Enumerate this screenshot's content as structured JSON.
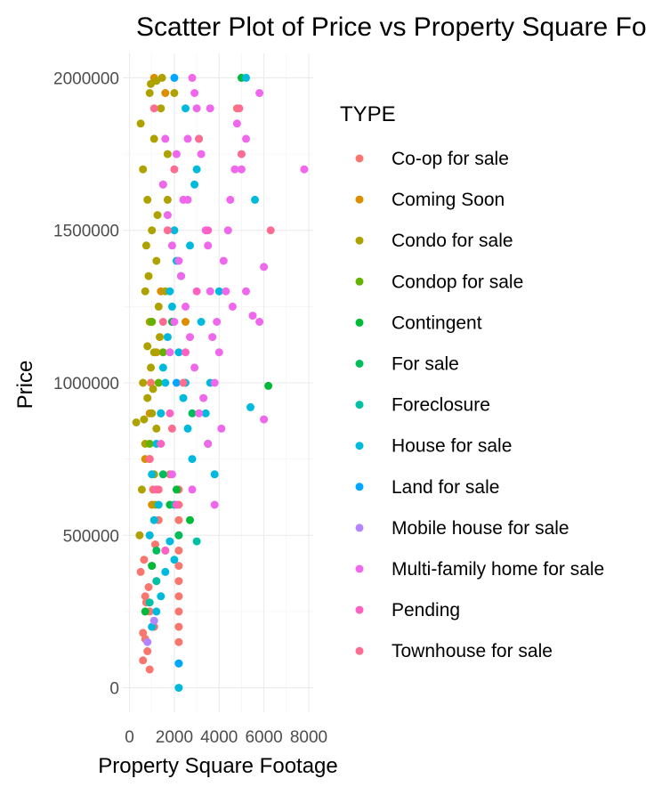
{
  "chart_data": {
    "type": "scatter",
    "title": "Scatter Plot of Price vs Property Square Footage",
    "xlabel": "Property Square Footage",
    "ylabel": "Price",
    "x_ticks": [
      0,
      2000,
      4000,
      6000,
      8000
    ],
    "y_ticks": [
      0,
      500000,
      1000000,
      1500000,
      2000000
    ],
    "xlim": [
      -300,
      8200
    ],
    "ylim": [
      -80000,
      2080000
    ],
    "grid": true,
    "legend_title": "TYPE",
    "legend_position": "right",
    "series": [
      {
        "name": "Co-op for sale",
        "color": "#F8766D",
        "points": [
          [
            700,
            300000
          ],
          [
            900,
            250000
          ],
          [
            1000,
            400000
          ],
          [
            600,
            180000
          ],
          [
            800,
            120000
          ],
          [
            1200,
            350000
          ],
          [
            900,
            500000
          ],
          [
            750,
            280000
          ],
          [
            1100,
            200000
          ],
          [
            2200,
            150000
          ],
          [
            2200,
            250000
          ],
          [
            2200,
            350000
          ],
          [
            2200,
            450000
          ],
          [
            2200,
            550000
          ],
          [
            2200,
            650000
          ],
          [
            2200,
            200000
          ],
          [
            2200,
            300000
          ],
          [
            2200,
            400000
          ],
          [
            2200,
            500000
          ],
          [
            2200,
            600000
          ],
          [
            1300,
            550000
          ],
          [
            500,
            380000
          ],
          [
            1800,
            700000
          ],
          [
            4800,
            1900000
          ],
          [
            950,
            1000000
          ],
          [
            1050,
            650000
          ],
          [
            650,
            420000
          ],
          [
            850,
            330000
          ],
          [
            1150,
            470000
          ],
          [
            700,
            160000
          ],
          [
            600,
            90000
          ],
          [
            900,
            60000
          ]
        ]
      },
      {
        "name": "Coming Soon",
        "color": "#DB8E00",
        "points": [
          [
            1200,
            1100000
          ],
          [
            900,
            900000
          ],
          [
            1400,
            1300000
          ],
          [
            700,
            750000
          ],
          [
            1600,
            1950000
          ],
          [
            1100,
            2000000
          ],
          [
            2500,
            1200000
          ],
          [
            1000,
            600000
          ]
        ]
      },
      {
        "name": "Condo for sale",
        "color": "#AEA200",
        "points": [
          [
            900,
            1950000
          ],
          [
            1100,
            1800000
          ],
          [
            800,
            1600000
          ],
          [
            1000,
            1500000
          ],
          [
            1200,
            1400000
          ],
          [
            700,
            1300000
          ],
          [
            900,
            1200000
          ],
          [
            1100,
            1100000
          ],
          [
            600,
            1000000
          ],
          [
            800,
            950000
          ],
          [
            1000,
            900000
          ],
          [
            1200,
            850000
          ],
          [
            700,
            800000
          ],
          [
            900,
            750000
          ],
          [
            1100,
            700000
          ],
          [
            1300,
            1250000
          ],
          [
            1500,
            1650000
          ],
          [
            1700,
            1750000
          ],
          [
            1400,
            1900000
          ],
          [
            500,
            1850000
          ],
          [
            600,
            1700000
          ],
          [
            750,
            1450000
          ],
          [
            850,
            1350000
          ],
          [
            950,
            1050000
          ],
          [
            1050,
            980000
          ],
          [
            1250,
            1550000
          ],
          [
            1350,
            1150000
          ],
          [
            650,
            880000
          ],
          [
            550,
            650000
          ],
          [
            1150,
            600000
          ],
          [
            450,
            500000
          ],
          [
            1450,
            2000000
          ],
          [
            2000,
            1950000
          ],
          [
            950,
            1980000
          ],
          [
            1200,
            1990000
          ],
          [
            1600,
            1300000
          ],
          [
            800,
            1120000
          ],
          [
            1000,
            1200000
          ],
          [
            300,
            870000
          ],
          [
            1700,
            1600000
          ]
        ]
      },
      {
        "name": "Condop for sale",
        "color": "#64B200",
        "points": [
          [
            1000,
            1200000
          ],
          [
            1300,
            1000000
          ],
          [
            900,
            800000
          ],
          [
            1500,
            1100000
          ]
        ]
      },
      {
        "name": "Contingent",
        "color": "#00BA38",
        "points": [
          [
            6200,
            990000
          ],
          [
            5000,
            2000000
          ],
          [
            3500,
            800000
          ],
          [
            1800,
            600000
          ],
          [
            1400,
            900000
          ],
          [
            2100,
            650000
          ],
          [
            1000,
            400000
          ],
          [
            1900,
            1200000
          ],
          [
            700,
            250000
          ],
          [
            2700,
            550000
          ]
        ]
      },
      {
        "name": "For sale",
        "color": "#00BD5C",
        "points": [
          [
            1500,
            700000
          ],
          [
            2200,
            500000
          ],
          [
            1200,
            450000
          ],
          [
            2800,
            900000
          ]
        ]
      },
      {
        "name": "Foreclosure",
        "color": "#00C1A3",
        "points": [
          [
            1200,
            350000
          ],
          [
            1600,
            450000
          ],
          [
            3000,
            480000
          ],
          [
            900,
            280000
          ],
          [
            2000,
            600000
          ]
        ]
      },
      {
        "name": "House for sale",
        "color": "#00BADE",
        "points": [
          [
            2500,
            1900000
          ],
          [
            3000,
            1700000
          ],
          [
            2000,
            1500000
          ],
          [
            1800,
            1300000
          ],
          [
            2200,
            1100000
          ],
          [
            1600,
            1000000
          ],
          [
            2400,
            950000
          ],
          [
            1400,
            900000
          ],
          [
            2600,
            850000
          ],
          [
            1200,
            800000
          ],
          [
            2800,
            750000
          ],
          [
            1000,
            700000
          ],
          [
            3200,
            1200000
          ],
          [
            3600,
            1000000
          ],
          [
            3800,
            700000
          ],
          [
            5400,
            920000
          ],
          [
            5600,
            1600000
          ],
          [
            5200,
            2000000
          ],
          [
            2100,
            1400000
          ],
          [
            1900,
            1250000
          ],
          [
            1700,
            1150000
          ],
          [
            1500,
            1050000
          ],
          [
            2300,
            1350000
          ],
          [
            2700,
            1450000
          ],
          [
            2900,
            1650000
          ],
          [
            3100,
            1800000
          ],
          [
            1300,
            600000
          ],
          [
            1100,
            550000
          ],
          [
            900,
            500000
          ],
          [
            1800,
            480000
          ],
          [
            2000,
            420000
          ],
          [
            1600,
            380000
          ],
          [
            1400,
            300000
          ],
          [
            1200,
            250000
          ],
          [
            1000,
            200000
          ],
          [
            2200,
            80000
          ],
          [
            2200,
            0
          ],
          [
            3400,
            900000
          ],
          [
            4000,
            1300000
          ],
          [
            2500,
            1000000
          ]
        ]
      },
      {
        "name": "Land for sale",
        "color": "#00A6FF",
        "points": [
          [
            2000,
            2000000
          ],
          [
            2100,
            1000000
          ],
          [
            2200,
            80000
          ]
        ]
      },
      {
        "name": "Mobile house for sale",
        "color": "#B385FF",
        "points": [
          [
            800,
            150000
          ],
          [
            1100,
            220000
          ]
        ]
      },
      {
        "name": "Multi-family home for sale",
        "color": "#EF67EB",
        "points": [
          [
            7800,
            1700000
          ],
          [
            6000,
            1380000
          ],
          [
            5800,
            1200000
          ],
          [
            5500,
            1220000
          ],
          [
            5200,
            1300000
          ],
          [
            4800,
            1850000
          ],
          [
            4500,
            1600000
          ],
          [
            4200,
            1400000
          ],
          [
            4000,
            1100000
          ],
          [
            3800,
            1000000
          ],
          [
            3600,
            1300000
          ],
          [
            3400,
            1500000
          ],
          [
            3200,
            1750000
          ],
          [
            3000,
            1900000
          ],
          [
            2800,
            2000000
          ],
          [
            2600,
            1800000
          ],
          [
            2400,
            1600000
          ],
          [
            2200,
            1400000
          ],
          [
            2000,
            1200000
          ],
          [
            1800,
            1100000
          ],
          [
            3500,
            800000
          ],
          [
            4100,
            850000
          ],
          [
            6000,
            880000
          ],
          [
            5000,
            1700000
          ],
          [
            4700,
            1700000
          ],
          [
            4400,
            1500000
          ],
          [
            3900,
            1200000
          ],
          [
            3700,
            1150000
          ],
          [
            3300,
            950000
          ],
          [
            3100,
            900000
          ],
          [
            2900,
            1050000
          ],
          [
            2700,
            1150000
          ],
          [
            2500,
            1250000
          ],
          [
            2300,
            1350000
          ],
          [
            1900,
            1450000
          ],
          [
            1700,
            1550000
          ],
          [
            1500,
            1650000
          ],
          [
            2100,
            1750000
          ],
          [
            2600,
            1600000
          ],
          [
            3600,
            1900000
          ],
          [
            2900,
            1950000
          ],
          [
            1600,
            1800000
          ],
          [
            3500,
            1450000
          ],
          [
            4300,
            1300000
          ],
          [
            5200,
            1800000
          ],
          [
            5800,
            1950000
          ],
          [
            4600,
            1250000
          ],
          [
            3800,
            600000
          ],
          [
            2800,
            650000
          ],
          [
            1900,
            700000
          ]
        ]
      },
      {
        "name": "Pending",
        "color": "#FF61C3",
        "points": [
          [
            2500,
            1100000
          ],
          [
            1800,
            900000
          ],
          [
            2100,
            600000
          ],
          [
            1400,
            800000
          ],
          [
            3000,
            1300000
          ],
          [
            3500,
            1500000
          ],
          [
            1200,
            650000
          ],
          [
            1600,
            450000
          ]
        ]
      },
      {
        "name": "Townhouse for sale",
        "color": "#FF6C91",
        "points": [
          [
            6300,
            1500000
          ],
          [
            5000,
            1750000
          ],
          [
            4900,
            1900000
          ],
          [
            2400,
            1000000
          ],
          [
            1900,
            850000
          ],
          [
            1500,
            1200000
          ],
          [
            1300,
            650000
          ],
          [
            1100,
            1900000
          ],
          [
            3100,
            1800000
          ],
          [
            2000,
            1700000
          ],
          [
            1700,
            1500000
          ],
          [
            900,
            750000
          ]
        ]
      }
    ]
  }
}
